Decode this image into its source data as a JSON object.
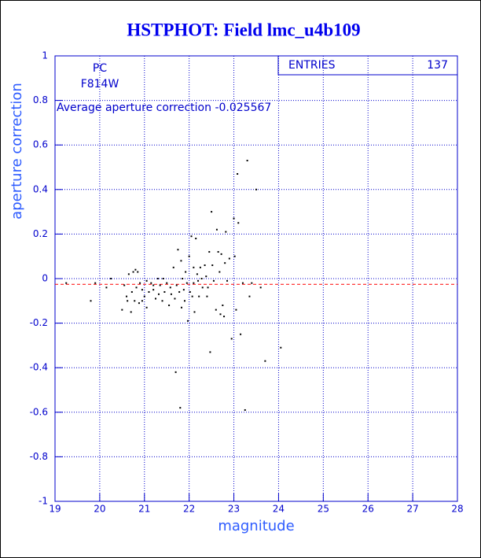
{
  "chart_data": {
    "type": "scatter",
    "title": "HSTPHOT: Field lmc_u4b109",
    "xlabel": "magnitude",
    "ylabel": "aperture correction",
    "annotations": [
      "PC",
      "F814W"
    ],
    "average_label": "Average aperture correction",
    "average": -0.025567,
    "average_color": "#ff0000",
    "stats_label": "ENTRIES",
    "entries": 137,
    "color": "#000000",
    "grid": true,
    "xlim": [
      19,
      28
    ],
    "xticks": [
      19,
      20,
      21,
      22,
      23,
      24,
      25,
      26,
      27,
      28
    ],
    "ylim": [
      -1,
      1
    ],
    "yticks": [
      -1,
      -0.8,
      -0.6,
      -0.4,
      -0.2,
      0,
      0.2,
      0.4,
      0.6,
      0.8,
      1
    ],
    "x": [
      19.25,
      19.8,
      19.9,
      20.15,
      20.25,
      20.5,
      20.55,
      20.6,
      20.62,
      20.65,
      20.7,
      20.72,
      20.75,
      20.78,
      20.8,
      20.82,
      20.85,
      20.88,
      20.9,
      20.95,
      20.95,
      21.0,
      21.05,
      21.05,
      21.1,
      21.15,
      21.2,
      21.2,
      21.25,
      21.3,
      21.32,
      21.35,
      21.4,
      21.42,
      21.45,
      21.5,
      21.55,
      21.58,
      21.6,
      21.65,
      21.68,
      21.7,
      21.72,
      21.75,
      21.78,
      21.8,
      21.82,
      21.83,
      21.85,
      21.88,
      21.9,
      21.92,
      21.95,
      21.97,
      22.0,
      22.02,
      22.05,
      22.07,
      22.1,
      22.1,
      22.12,
      22.15,
      22.18,
      22.2,
      22.22,
      22.25,
      22.28,
      22.3,
      22.35,
      22.38,
      22.4,
      22.42,
      22.45,
      22.47,
      22.5,
      22.52,
      22.55,
      22.6,
      22.62,
      22.65,
      22.68,
      22.7,
      22.72,
      22.75,
      22.78,
      22.8,
      22.82,
      22.85,
      22.9,
      22.95,
      23.0,
      23.02,
      23.05,
      23.08,
      23.1,
      23.15,
      23.2,
      23.25,
      23.3,
      23.35,
      23.4,
      23.5,
      23.6,
      23.7,
      24.05
    ],
    "y": [
      -0.02,
      -0.1,
      -0.02,
      -0.04,
      0.0,
      -0.14,
      -0.03,
      -0.08,
      -0.1,
      0.02,
      -0.15,
      -0.06,
      0.03,
      -0.1,
      0.04,
      -0.04,
      0.03,
      -0.11,
      -0.02,
      -0.05,
      -0.1,
      -0.08,
      -0.01,
      -0.13,
      -0.06,
      -0.02,
      -0.05,
      -0.03,
      -0.09,
      0.0,
      -0.07,
      -0.03,
      -0.1,
      0.0,
      -0.06,
      -0.02,
      -0.12,
      -0.04,
      -0.07,
      0.05,
      -0.09,
      -0.42,
      -0.03,
      0.13,
      -0.06,
      -0.58,
      0.08,
      -0.13,
      0.0,
      -0.05,
      -0.1,
      0.03,
      -0.02,
      -0.19,
      0.1,
      -0.06,
      0.19,
      -0.08,
      0.05,
      -0.02,
      -0.15,
      0.18,
      0.02,
      -0.01,
      -0.08,
      0.05,
      0.0,
      -0.04,
      0.06,
      0.01,
      -0.08,
      -0.04,
      0.12,
      -0.33,
      0.3,
      0.06,
      -0.01,
      -0.14,
      0.22,
      0.12,
      0.03,
      -0.16,
      0.11,
      -0.12,
      -0.17,
      0.07,
      0.21,
      -0.01,
      0.09,
      -0.27,
      0.27,
      0.1,
      -0.14,
      0.47,
      0.25,
      -0.25,
      -0.02,
      -0.59,
      0.53,
      -0.08,
      -0.02,
      0.4,
      -0.04,
      -0.37,
      -0.31
    ]
  }
}
